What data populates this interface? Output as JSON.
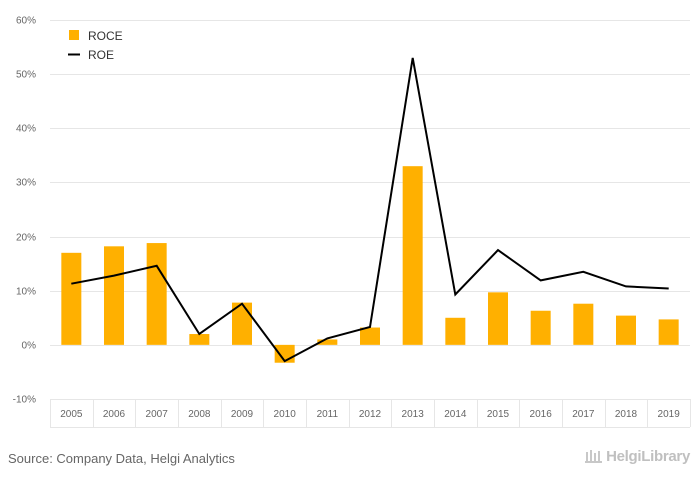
{
  "chart_data": {
    "type": "bar+line",
    "categories": [
      "2005",
      "2006",
      "2007",
      "2008",
      "2009",
      "2010",
      "2011",
      "2012",
      "2013",
      "2014",
      "2015",
      "2016",
      "2017",
      "2018",
      "2019"
    ],
    "series": [
      {
        "name": "ROCE",
        "type": "bar",
        "color": "#FFB000",
        "values": [
          17.0,
          18.2,
          18.8,
          2.0,
          7.8,
          -3.3,
          1.0,
          3.2,
          33.0,
          5.0,
          9.7,
          6.3,
          7.6,
          5.4,
          4.7
        ]
      },
      {
        "name": "ROE",
        "type": "line",
        "color": "#000000",
        "values": [
          11.3,
          12.8,
          14.6,
          2.0,
          7.6,
          -3.0,
          1.2,
          3.3,
          53.0,
          9.3,
          17.5,
          11.9,
          13.5,
          10.8,
          10.4
        ]
      }
    ],
    "y_ticks": [
      "-10%",
      "0%",
      "10%",
      "20%",
      "30%",
      "40%",
      "50%",
      "60%"
    ],
    "y_tick_values": [
      -10,
      0,
      10,
      20,
      30,
      40,
      50,
      60
    ],
    "ylim": [
      -10,
      60
    ],
    "legend_position": "top-left",
    "grid": true
  },
  "footer": {
    "source": "Source: Company Data, Helgi Analytics"
  },
  "logo": {
    "text": "HelgiLibrary",
    "icon": "library-building-icon"
  }
}
